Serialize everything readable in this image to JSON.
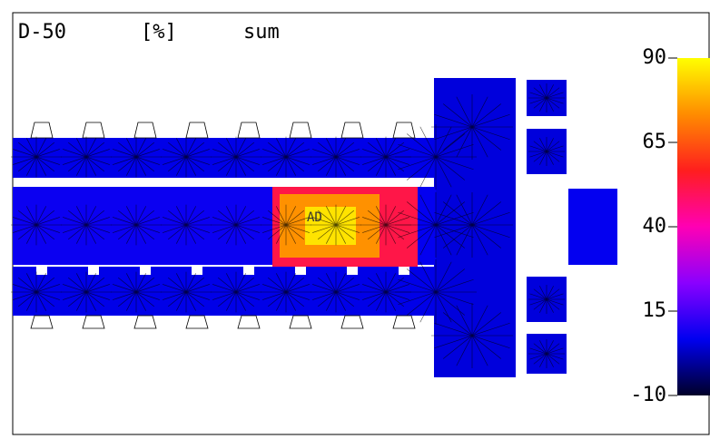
{
  "chart_data": {
    "type": "contour",
    "title": "D-50",
    "unit": "[%]",
    "mode": "sum",
    "annotations": [
      "AD"
    ],
    "values": [
      6,
      6,
      8,
      5,
      5,
      52,
      74,
      86,
      7
    ],
    "colormap": [
      "#000028",
      "#0000f0",
      "#8a00ff",
      "#ff00b4",
      "#ff1e1e",
      "#ff8c00",
      "#ffff00"
    ],
    "ylim": [
      -10,
      90
    ],
    "yticks": [
      -10,
      15,
      40,
      65,
      90
    ]
  }
}
